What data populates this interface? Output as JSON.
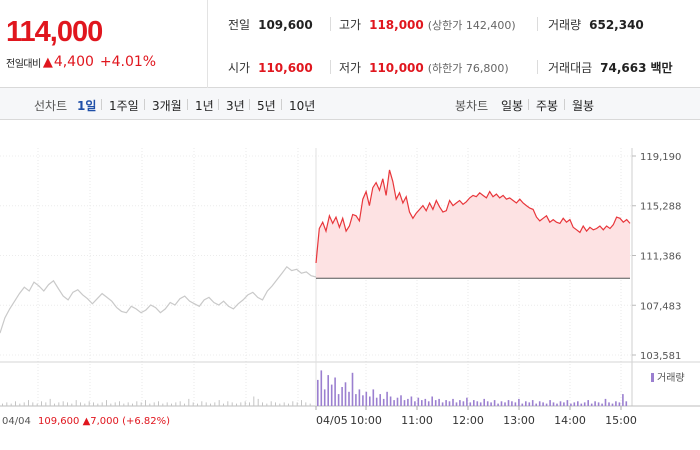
{
  "quote": {
    "current_price": "114,000",
    "change_label": "전일대비",
    "change_arrow": "▲",
    "change_value": "4,400",
    "change_rate": "+4.01%",
    "stats": {
      "prev_close": {
        "label": "전일",
        "value": "109,600"
      },
      "high": {
        "label": "고가",
        "value": "118,000",
        "sub": "(상한가 142,400)"
      },
      "volume": {
        "label": "거래량",
        "value": "652,340"
      },
      "open": {
        "label": "시가",
        "value": "110,600"
      },
      "low": {
        "label": "저가",
        "value": "110,000",
        "sub": "(하한가 76,800)"
      },
      "turnover": {
        "label": "거래대금",
        "value": "74,663",
        "unit": "백만"
      }
    }
  },
  "tabs": {
    "line_chart_label": "선차트",
    "line_tabs": [
      {
        "label": "1일",
        "active": true
      },
      {
        "label": "1주일",
        "active": false
      },
      {
        "label": "3개월",
        "active": false
      },
      {
        "label": "1년",
        "active": false
      },
      {
        "label": "3년",
        "active": false
      },
      {
        "label": "5년",
        "active": false
      },
      {
        "label": "10년",
        "active": false
      }
    ],
    "candle_chart_label": "봉차트",
    "candle_tabs": [
      {
        "label": "일봉"
      },
      {
        "label": "주봉"
      },
      {
        "label": "월봉"
      }
    ]
  },
  "chart_data": {
    "type": "line",
    "title": "",
    "y_ticks": [
      "119,190",
      "115,288",
      "111,386",
      "107,483",
      "103,581"
    ],
    "y_tick_values": [
      119190,
      115288,
      111386,
      107483,
      103581
    ],
    "ylim": [
      103581,
      119190
    ],
    "reference_price": 109600,
    "x_tick_labels": [
      "04/04",
      "04/05",
      "10:00",
      "11:00",
      "12:00",
      "13:00",
      "14:00",
      "15:00"
    ],
    "volume_legend": "거래량",
    "prev_day": {
      "date": "04/04",
      "close": "109,600",
      "arrow": "▲",
      "change": "7,000",
      "rate": "(+6.82%)",
      "values": [
        105300,
        106500,
        107200,
        107800,
        108400,
        108900,
        108600,
        109300,
        109000,
        108600,
        109100,
        109400,
        108800,
        108200,
        107900,
        108500,
        108700,
        108300,
        108000,
        107600,
        108000,
        108400,
        108100,
        107800,
        107300,
        107000,
        106900,
        107400,
        107200,
        106900,
        107100,
        107500,
        107300,
        106900,
        107200,
        107700,
        107500,
        108000,
        108200,
        107800,
        107600,
        107400,
        107900,
        108100,
        107700,
        107500,
        107800,
        107400,
        107200,
        107600,
        107900,
        108300,
        108500,
        108100,
        107900,
        108600,
        109000,
        109500,
        110000,
        110500,
        110200,
        110300,
        110000,
        110100,
        109800,
        109700
      ]
    },
    "series": [
      {
        "name": "04/05",
        "color": "#e8363b",
        "fill": "#fde2e3",
        "values": [
          110800,
          113500,
          114000,
          113300,
          114500,
          113900,
          114400,
          113600,
          114300,
          113300,
          113700,
          114600,
          114500,
          114100,
          115800,
          116400,
          115300,
          116700,
          117100,
          116500,
          117400,
          116100,
          118100,
          117200,
          115800,
          116300,
          115500,
          116000,
          114800,
          114300,
          114700,
          115000,
          115300,
          114900,
          115500,
          115000,
          115700,
          115200,
          114800,
          114900,
          115700,
          115300,
          115500,
          115700,
          115400,
          115600,
          115900,
          116100,
          116000,
          116300,
          116100,
          115900,
          116400,
          116000,
          116200,
          115900,
          116100,
          115800,
          115900,
          115700,
          115500,
          115800,
          115500,
          115300,
          115100,
          115000,
          114400,
          114100,
          114300,
          114500,
          114000,
          114200,
          114000,
          113900,
          114300,
          114000,
          114200,
          113600,
          113400,
          113200,
          113700,
          113300,
          113600,
          113400,
          113500,
          113700,
          113400,
          113700,
          113500,
          113800,
          114400,
          114300,
          114000,
          114200,
          113900
        ]
      }
    ],
    "volume_prev_day": [
      2,
      3,
      2,
      4,
      2,
      3,
      5,
      3,
      2,
      4,
      3,
      6,
      2,
      3,
      4,
      3,
      2,
      5,
      3,
      2,
      4,
      3,
      2,
      3,
      5,
      2,
      3,
      4,
      2,
      3,
      2,
      4,
      3,
      5,
      2,
      3,
      4,
      2,
      3,
      2,
      3,
      4,
      2,
      6,
      3,
      2,
      4,
      3,
      2,
      3,
      5,
      2,
      4,
      3,
      2,
      3,
      4,
      3,
      8,
      6,
      3,
      2,
      4,
      3,
      2,
      3,
      2,
      4,
      3,
      5,
      3,
      2
    ],
    "volume_today": [
      22,
      30,
      14,
      26,
      18,
      24,
      10,
      16,
      20,
      12,
      28,
      10,
      14,
      9,
      12,
      8,
      14,
      7,
      10,
      6,
      12,
      8,
      5,
      7,
      9,
      5,
      6,
      8,
      4,
      7,
      5,
      6,
      4,
      8,
      5,
      6,
      3,
      5,
      4,
      6,
      3,
      5,
      4,
      7,
      3,
      5,
      4,
      3,
      6,
      4,
      3,
      5,
      2,
      4,
      3,
      5,
      4,
      3,
      6,
      2,
      4,
      3,
      5,
      2,
      4,
      3,
      2,
      5,
      3,
      2,
      4,
      3,
      5,
      2,
      3,
      4,
      2,
      3,
      5,
      2,
      4,
      3,
      2,
      6,
      3,
      2,
      4,
      3,
      10,
      4
    ]
  }
}
